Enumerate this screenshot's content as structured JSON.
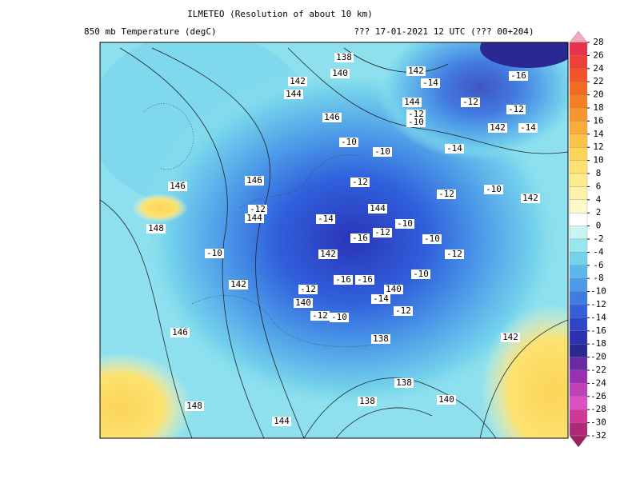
{
  "header": {
    "title": "ILMETEO  (Resolution of about 10 km)",
    "field": "850 mb Temperature (degC)",
    "run": "??? 17-01-2021 12 UTC (??? 00+204)"
  },
  "colorbar": {
    "labels": [
      28,
      26,
      24,
      22,
      20,
      18,
      16,
      14,
      12,
      10,
      8,
      6,
      4,
      2,
      0,
      -2,
      -4,
      -6,
      -8,
      -10,
      -12,
      -14,
      -16,
      -18,
      -20,
      -22,
      -24,
      -26,
      -28,
      -30,
      -32
    ],
    "colors": [
      "#e8304a",
      "#ec4038",
      "#f05428",
      "#f36a22",
      "#f58024",
      "#f7962e",
      "#f9ac3a",
      "#fbc248",
      "#fcd458",
      "#fde270",
      "#fdeb8c",
      "#fef2a8",
      "#fff8c8",
      "#ffffff",
      "#c8f4f4",
      "#98e6ee",
      "#74d2ec",
      "#5cb8ec",
      "#4c9ae8",
      "#3e7ce2",
      "#345fd8",
      "#2e46c8",
      "#2a32b0",
      "#2a2892",
      "#6a2aa6",
      "#9a30b0",
      "#c040b8",
      "#de50c0",
      "#d03898",
      "#b02878"
    ],
    "above_color": "#f4a8b8",
    "below_color": "#a02060"
  },
  "map_labels": [
    138,
    140,
    142,
    144,
    146,
    142,
    -14,
    144,
    -12,
    -10,
    -12,
    -12,
    -16,
    142,
    -14,
    -10,
    -10,
    -14,
    146,
    146,
    -12,
    -12,
    -10,
    142,
    -12,
    144,
    -14,
    144,
    148,
    -10,
    -12,
    -16,
    -10,
    -10,
    142,
    -12,
    -10,
    -16,
    -16,
    142,
    -12,
    140,
    140,
    -14,
    -12,
    -12,
    -10,
    146,
    138,
    142,
    138,
    138,
    140,
    148,
    144
  ]
}
